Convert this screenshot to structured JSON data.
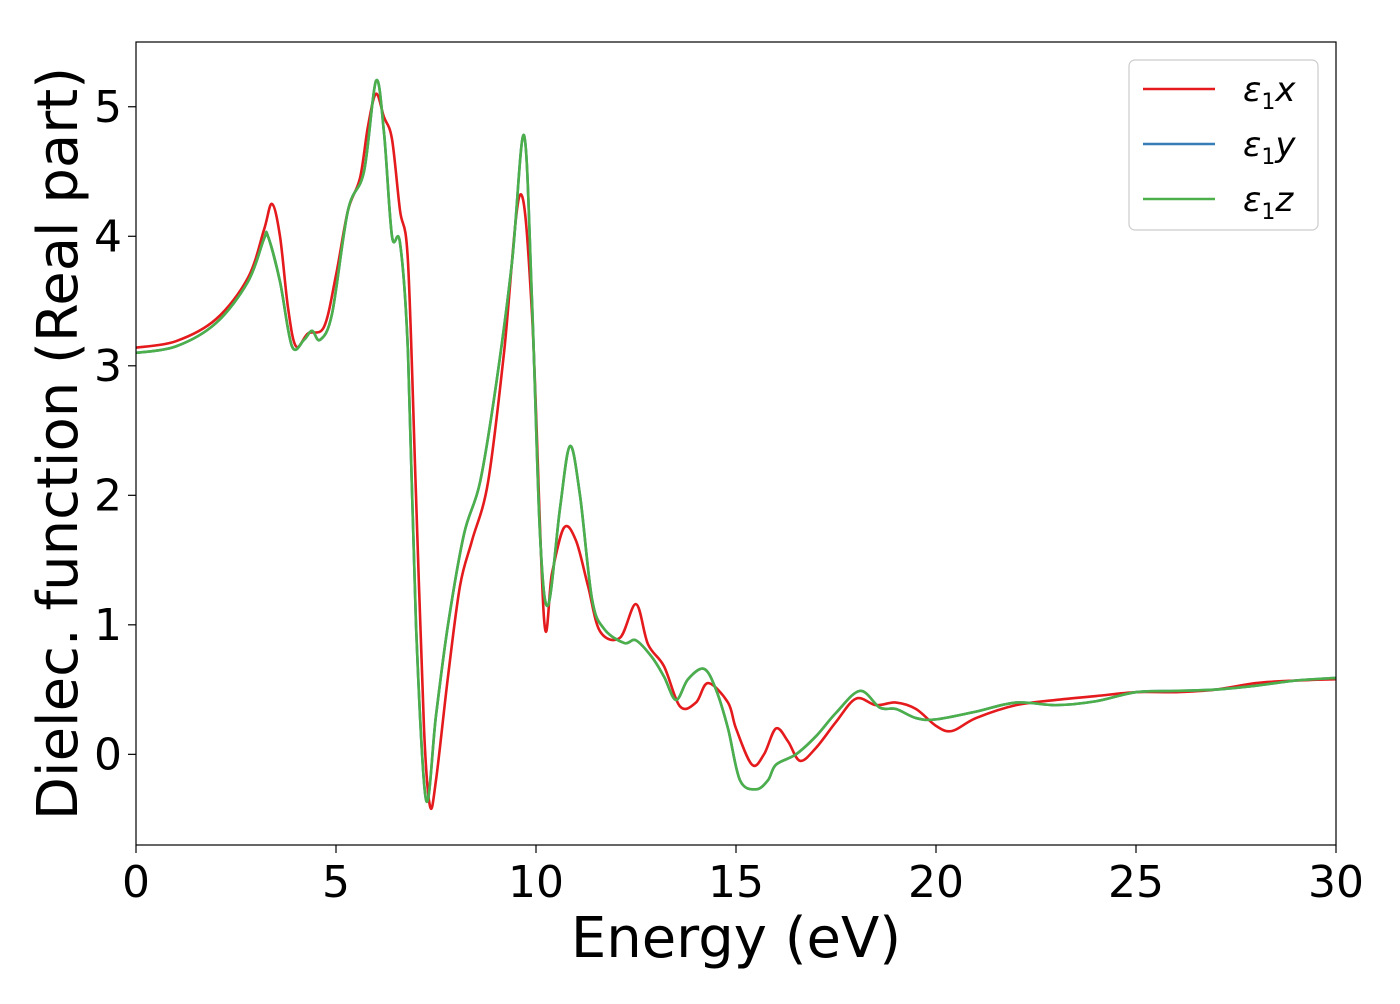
{
  "chart_data": {
    "type": "line",
    "title": "",
    "xlabel": "Energy (eV)",
    "ylabel": "Dielec. function (Real part)",
    "xlim": [
      0,
      30
    ],
    "ylim": [
      -0.7,
      5.5
    ],
    "x_ticks": [
      0,
      5,
      10,
      15,
      20,
      25,
      30
    ],
    "y_ticks": [
      0,
      1,
      2,
      3,
      4,
      5
    ],
    "grid": false,
    "legend_position": "top-right",
    "legend": [
      {
        "symbol": "ε",
        "sub": "1",
        "axis": "x"
      },
      {
        "symbol": "ε",
        "sub": "1",
        "axis": "y"
      },
      {
        "symbol": "ε",
        "sub": "1",
        "axis": "z"
      }
    ],
    "series": [
      {
        "name": "ε1x",
        "color": "#e41a1c",
        "points": [
          [
            0,
            3.14
          ],
          [
            1,
            3.19
          ],
          [
            2,
            3.36
          ],
          [
            2.8,
            3.68
          ],
          [
            3.2,
            4.05
          ],
          [
            3.4,
            4.25
          ],
          [
            3.6,
            4.0
          ],
          [
            3.8,
            3.45
          ],
          [
            4.0,
            3.15
          ],
          [
            4.3,
            3.25
          ],
          [
            4.7,
            3.3
          ],
          [
            5.0,
            3.7
          ],
          [
            5.3,
            4.2
          ],
          [
            5.6,
            4.45
          ],
          [
            5.8,
            4.85
          ],
          [
            6.0,
            5.1
          ],
          [
            6.2,
            4.92
          ],
          [
            6.4,
            4.75
          ],
          [
            6.6,
            4.2
          ],
          [
            6.8,
            3.8
          ],
          [
            7.0,
            2.0
          ],
          [
            7.2,
            0.2
          ],
          [
            7.35,
            -0.4
          ],
          [
            7.5,
            -0.2
          ],
          [
            7.8,
            0.6
          ],
          [
            8.1,
            1.3
          ],
          [
            8.4,
            1.65
          ],
          [
            8.8,
            2.1
          ],
          [
            9.2,
            3.1
          ],
          [
            9.6,
            4.32
          ],
          [
            9.9,
            3.4
          ],
          [
            10.2,
            1.05
          ],
          [
            10.4,
            1.4
          ],
          [
            10.7,
            1.75
          ],
          [
            11.0,
            1.65
          ],
          [
            11.3,
            1.3
          ],
          [
            11.6,
            0.95
          ],
          [
            12.1,
            0.9
          ],
          [
            12.5,
            1.16
          ],
          [
            12.8,
            0.85
          ],
          [
            13.2,
            0.68
          ],
          [
            13.6,
            0.37
          ],
          [
            14.0,
            0.4
          ],
          [
            14.3,
            0.55
          ],
          [
            14.8,
            0.4
          ],
          [
            15.0,
            0.2
          ],
          [
            15.4,
            -0.08
          ],
          [
            15.7,
            0.0
          ],
          [
            16.0,
            0.2
          ],
          [
            16.3,
            0.1
          ],
          [
            16.6,
            -0.05
          ],
          [
            17.0,
            0.05
          ],
          [
            17.5,
            0.25
          ],
          [
            18.0,
            0.43
          ],
          [
            18.5,
            0.38
          ],
          [
            19.0,
            0.4
          ],
          [
            19.5,
            0.35
          ],
          [
            20.0,
            0.22
          ],
          [
            20.4,
            0.18
          ],
          [
            21.0,
            0.28
          ],
          [
            22.0,
            0.38
          ],
          [
            23.0,
            0.42
          ],
          [
            24.0,
            0.45
          ],
          [
            25.0,
            0.48
          ],
          [
            26.0,
            0.48
          ],
          [
            27.0,
            0.5
          ],
          [
            28.0,
            0.55
          ],
          [
            29.0,
            0.57
          ],
          [
            30.0,
            0.58
          ]
        ]
      },
      {
        "name": "ε1y",
        "color": "#377eb8",
        "points": [
          [
            0,
            3.1
          ],
          [
            1,
            3.15
          ],
          [
            2,
            3.33
          ],
          [
            2.8,
            3.65
          ],
          [
            3.2,
            3.98
          ],
          [
            3.3,
            4.0
          ],
          [
            3.6,
            3.65
          ],
          [
            3.9,
            3.15
          ],
          [
            4.2,
            3.2
          ],
          [
            4.4,
            3.27
          ],
          [
            4.6,
            3.2
          ],
          [
            4.9,
            3.4
          ],
          [
            5.3,
            4.2
          ],
          [
            5.7,
            4.5
          ],
          [
            6.0,
            5.2
          ],
          [
            6.2,
            4.8
          ],
          [
            6.4,
            4.0
          ],
          [
            6.6,
            3.95
          ],
          [
            6.8,
            3.1
          ],
          [
            7.0,
            1.0
          ],
          [
            7.25,
            -0.35
          ],
          [
            7.5,
            0.3
          ],
          [
            7.8,
            1.0
          ],
          [
            8.2,
            1.7
          ],
          [
            8.6,
            2.1
          ],
          [
            9.0,
            2.85
          ],
          [
            9.4,
            3.8
          ],
          [
            9.7,
            4.78
          ],
          [
            9.9,
            3.5
          ],
          [
            10.1,
            1.7
          ],
          [
            10.3,
            1.15
          ],
          [
            10.6,
            1.9
          ],
          [
            10.85,
            2.38
          ],
          [
            11.1,
            2.0
          ],
          [
            11.4,
            1.2
          ],
          [
            11.7,
            0.97
          ],
          [
            12.2,
            0.86
          ],
          [
            12.5,
            0.88
          ],
          [
            12.9,
            0.75
          ],
          [
            13.2,
            0.6
          ],
          [
            13.5,
            0.42
          ],
          [
            13.8,
            0.58
          ],
          [
            14.2,
            0.66
          ],
          [
            14.5,
            0.5
          ],
          [
            14.8,
            0.2
          ],
          [
            15.1,
            -0.2
          ],
          [
            15.5,
            -0.27
          ],
          [
            15.8,
            -0.2
          ],
          [
            16.0,
            -0.08
          ],
          [
            16.5,
            0.0
          ],
          [
            17.0,
            0.14
          ],
          [
            17.5,
            0.32
          ],
          [
            18.1,
            0.49
          ],
          [
            18.6,
            0.36
          ],
          [
            19.0,
            0.35
          ],
          [
            19.5,
            0.28
          ],
          [
            20.0,
            0.27
          ],
          [
            21.0,
            0.33
          ],
          [
            22.0,
            0.4
          ],
          [
            23.0,
            0.38
          ],
          [
            24.0,
            0.41
          ],
          [
            25.0,
            0.48
          ],
          [
            26.0,
            0.49
          ],
          [
            27.0,
            0.5
          ],
          [
            28.0,
            0.53
          ],
          [
            29.0,
            0.57
          ],
          [
            30.0,
            0.59
          ]
        ]
      },
      {
        "name": "ε1z",
        "color": "#4daf4a",
        "points": [
          [
            0,
            3.1
          ],
          [
            1,
            3.15
          ],
          [
            2,
            3.33
          ],
          [
            2.8,
            3.65
          ],
          [
            3.2,
            3.98
          ],
          [
            3.3,
            4.0
          ],
          [
            3.6,
            3.65
          ],
          [
            3.9,
            3.15
          ],
          [
            4.2,
            3.2
          ],
          [
            4.4,
            3.27
          ],
          [
            4.6,
            3.2
          ],
          [
            4.9,
            3.4
          ],
          [
            5.3,
            4.2
          ],
          [
            5.7,
            4.5
          ],
          [
            6.0,
            5.2
          ],
          [
            6.2,
            4.8
          ],
          [
            6.4,
            4.0
          ],
          [
            6.6,
            3.95
          ],
          [
            6.8,
            3.1
          ],
          [
            7.0,
            1.0
          ],
          [
            7.25,
            -0.35
          ],
          [
            7.5,
            0.3
          ],
          [
            7.8,
            1.0
          ],
          [
            8.2,
            1.7
          ],
          [
            8.6,
            2.1
          ],
          [
            9.0,
            2.85
          ],
          [
            9.4,
            3.8
          ],
          [
            9.7,
            4.78
          ],
          [
            9.9,
            3.5
          ],
          [
            10.1,
            1.7
          ],
          [
            10.3,
            1.15
          ],
          [
            10.6,
            1.9
          ],
          [
            10.85,
            2.38
          ],
          [
            11.1,
            2.0
          ],
          [
            11.4,
            1.2
          ],
          [
            11.7,
            0.97
          ],
          [
            12.2,
            0.86
          ],
          [
            12.5,
            0.88
          ],
          [
            12.9,
            0.75
          ],
          [
            13.2,
            0.6
          ],
          [
            13.5,
            0.42
          ],
          [
            13.8,
            0.58
          ],
          [
            14.2,
            0.66
          ],
          [
            14.5,
            0.5
          ],
          [
            14.8,
            0.2
          ],
          [
            15.1,
            -0.2
          ],
          [
            15.5,
            -0.27
          ],
          [
            15.8,
            -0.2
          ],
          [
            16.0,
            -0.08
          ],
          [
            16.5,
            0.0
          ],
          [
            17.0,
            0.14
          ],
          [
            17.5,
            0.32
          ],
          [
            18.1,
            0.49
          ],
          [
            18.6,
            0.36
          ],
          [
            19.0,
            0.35
          ],
          [
            19.5,
            0.28
          ],
          [
            20.0,
            0.27
          ],
          [
            21.0,
            0.33
          ],
          [
            22.0,
            0.4
          ],
          [
            23.0,
            0.38
          ],
          [
            24.0,
            0.41
          ],
          [
            25.0,
            0.48
          ],
          [
            26.0,
            0.49
          ],
          [
            27.0,
            0.5
          ],
          [
            28.0,
            0.53
          ],
          [
            29.0,
            0.57
          ],
          [
            30.0,
            0.59
          ]
        ]
      }
    ]
  }
}
